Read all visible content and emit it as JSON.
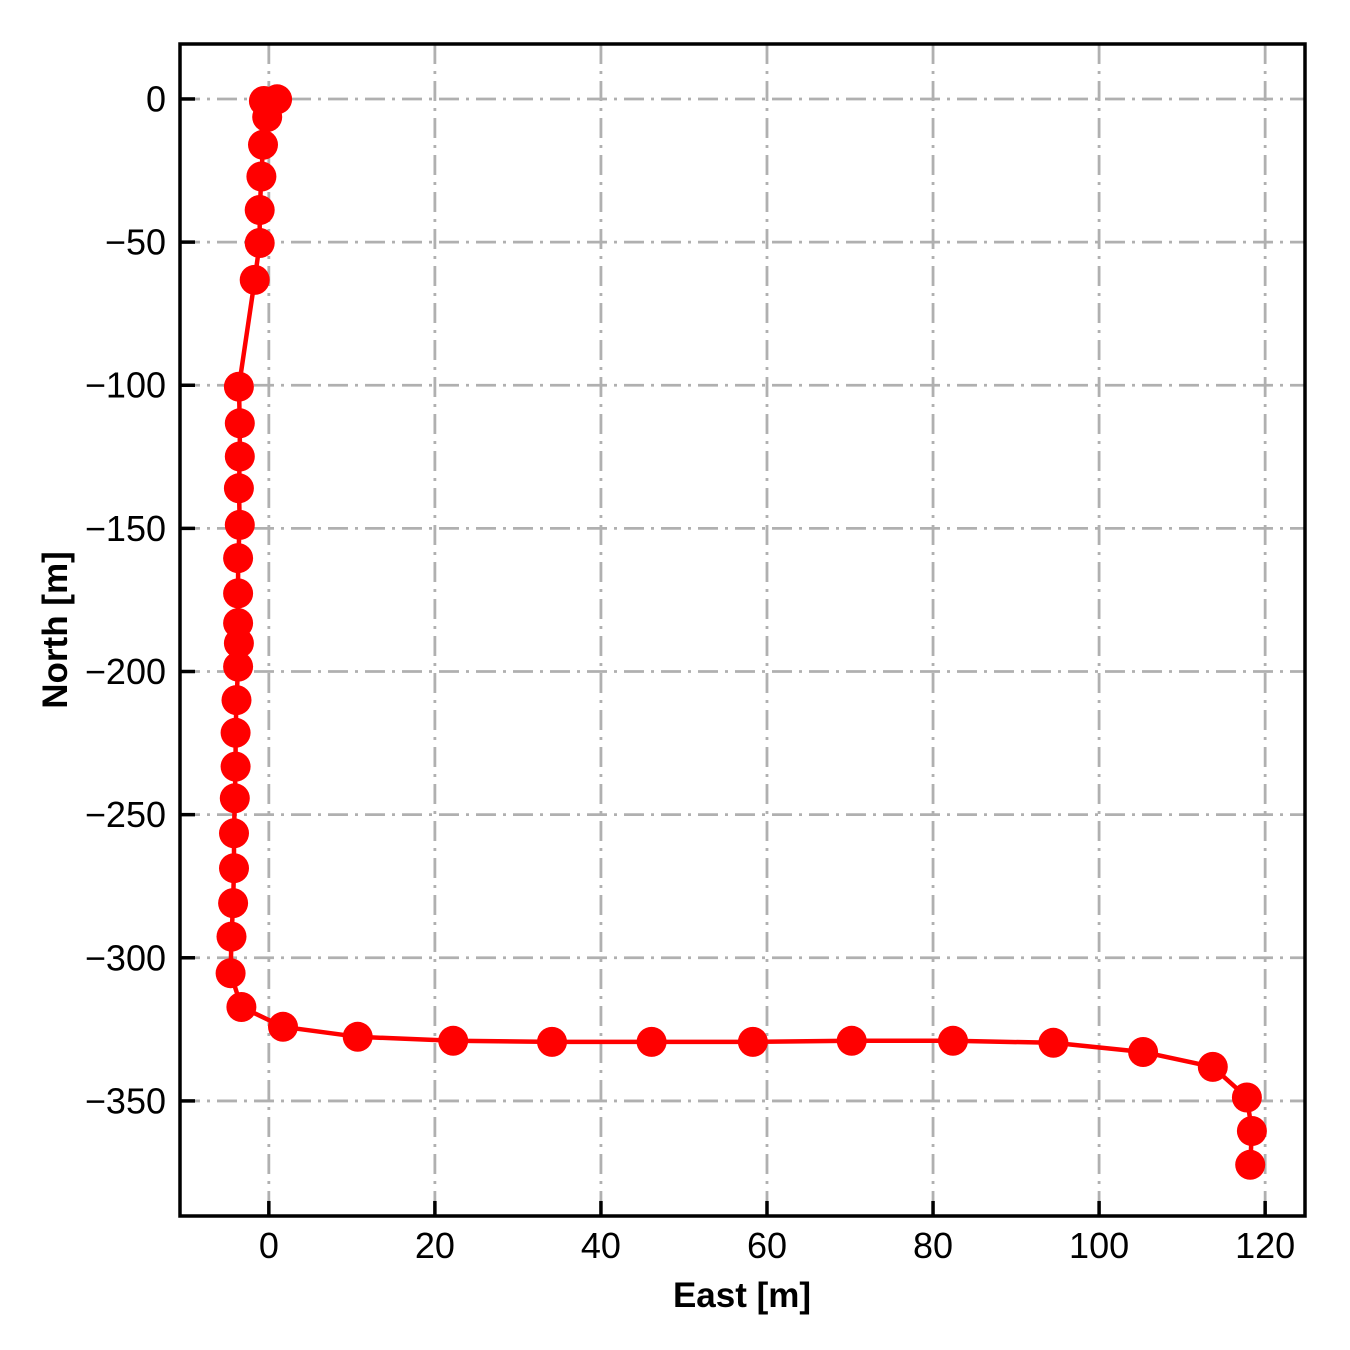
{
  "page": {
    "background": "#ffffff"
  },
  "chart_data": {
    "type": "line",
    "title": "",
    "xlabel": "East [m]",
    "ylabel": "North [m]",
    "xlim": [
      -10.7,
      124.8
    ],
    "ylim": [
      -390.2,
      19.2
    ],
    "x_ticks": {
      "values": [
        0,
        20,
        40,
        60,
        80,
        100,
        120
      ],
      "labels": [
        "0",
        "20",
        "40",
        "60",
        "80",
        "100",
        "120"
      ]
    },
    "y_ticks": {
      "values": [
        0,
        -50,
        -100,
        -150,
        -200,
        -250,
        -300,
        -350
      ],
      "labels": [
        "0",
        "−50",
        "−100",
        "−150",
        "−200",
        "−250",
        "−300",
        "−350"
      ]
    },
    "grid": {
      "on": true,
      "style": "dash-dot",
      "color": "#b0b0b0"
    },
    "axis_color": "#000000",
    "legend": "none",
    "series": [
      {
        "name": "trajectory",
        "color": "#ff0000",
        "marker": "circle",
        "points": [
          [
            1.0,
            -0.1
          ],
          [
            -0.6,
            -0.7
          ],
          [
            -0.2,
            -6.3
          ],
          [
            -0.7,
            -16.0
          ],
          [
            -0.9,
            -27.1
          ],
          [
            -1.1,
            -38.8
          ],
          [
            -1.1,
            -50.3
          ],
          [
            -1.7,
            -63.2
          ],
          [
            -3.6,
            -100.5
          ],
          [
            -3.5,
            -113.3
          ],
          [
            -3.5,
            -124.9
          ],
          [
            -3.6,
            -136.0
          ],
          [
            -3.5,
            -148.8
          ],
          [
            -3.7,
            -160.4
          ],
          [
            -3.7,
            -172.7
          ],
          [
            -3.7,
            -183.1
          ],
          [
            -3.6,
            -190.1
          ],
          [
            -3.7,
            -198.3
          ],
          [
            -3.9,
            -210.0
          ],
          [
            -4.0,
            -221.4
          ],
          [
            -4.0,
            -233.2
          ],
          [
            -4.1,
            -244.3
          ],
          [
            -4.2,
            -256.5
          ],
          [
            -4.2,
            -268.7
          ],
          [
            -4.3,
            -280.9
          ],
          [
            -4.5,
            -292.6
          ],
          [
            -4.6,
            -305.4
          ],
          [
            -3.3,
            -317.2
          ],
          [
            1.7,
            -324.1
          ],
          [
            10.7,
            -327.6
          ],
          [
            22.2,
            -329.0
          ],
          [
            34.1,
            -329.4
          ],
          [
            46.1,
            -329.4
          ],
          [
            58.3,
            -329.4
          ],
          [
            70.2,
            -329.0
          ],
          [
            82.4,
            -329.0
          ],
          [
            94.5,
            -329.7
          ],
          [
            105.3,
            -332.9
          ],
          [
            113.7,
            -338.1
          ],
          [
            117.8,
            -348.8
          ],
          [
            118.4,
            -360.5
          ],
          [
            118.2,
            -372.3
          ]
        ]
      }
    ]
  }
}
